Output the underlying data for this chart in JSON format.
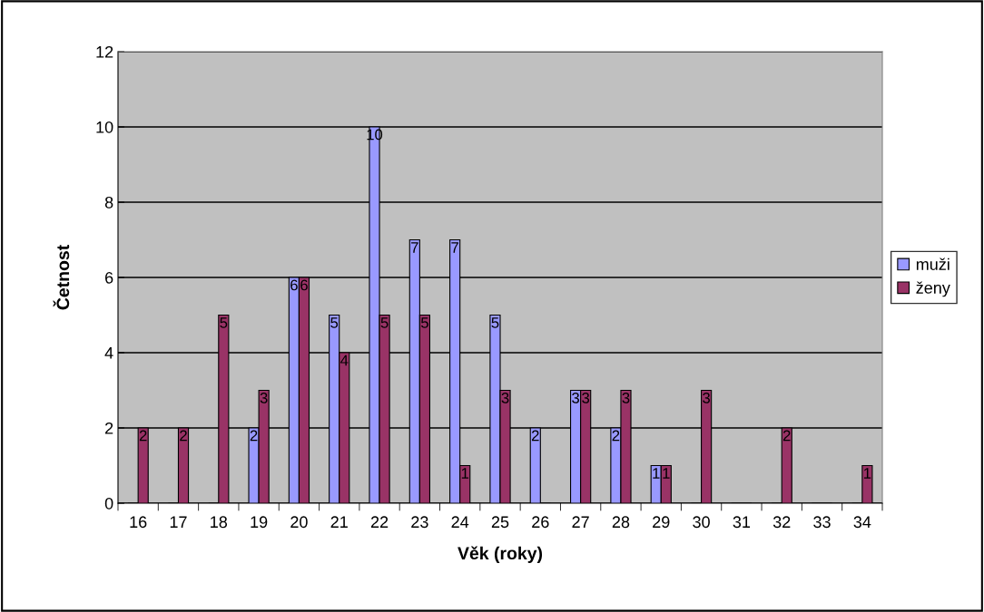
{
  "chart_data": {
    "type": "bar",
    "xlabel": "Věk (roky)",
    "ylabel": "Četnost",
    "categories": [
      "16",
      "17",
      "18",
      "19",
      "20",
      "21",
      "22",
      "23",
      "24",
      "25",
      "26",
      "27",
      "28",
      "29",
      "30",
      "31",
      "32",
      "33",
      "34"
    ],
    "series": [
      {
        "name": "muži",
        "color": "#9999ff",
        "values": [
          0,
          0,
          0,
          2,
          6,
          5,
          10,
          7,
          7,
          5,
          2,
          3,
          2,
          1,
          0,
          0,
          0,
          0,
          0
        ],
        "value_labels": [
          null,
          null,
          null,
          "2",
          "6",
          "5",
          "10",
          "7",
          "7",
          "5",
          "2",
          "3",
          "2",
          "1",
          null,
          null,
          null,
          null,
          null
        ]
      },
      {
        "name": "ženy",
        "color": "#993366",
        "values": [
          2,
          2,
          5,
          3,
          6,
          4,
          5,
          5,
          1,
          3,
          0,
          3,
          3,
          1,
          3,
          0,
          2,
          0,
          1
        ],
        "value_labels": [
          "2",
          "2",
          "5",
          "3",
          "6",
          "4",
          "5",
          "5",
          "1",
          "3",
          null,
          "3",
          "3",
          "1",
          "3",
          null,
          "2",
          null,
          "1"
        ]
      }
    ],
    "ylim": [
      0,
      12
    ],
    "yticks": [
      0,
      2,
      4,
      6,
      8,
      10,
      12
    ],
    "grid": "y",
    "legend": "right"
  }
}
